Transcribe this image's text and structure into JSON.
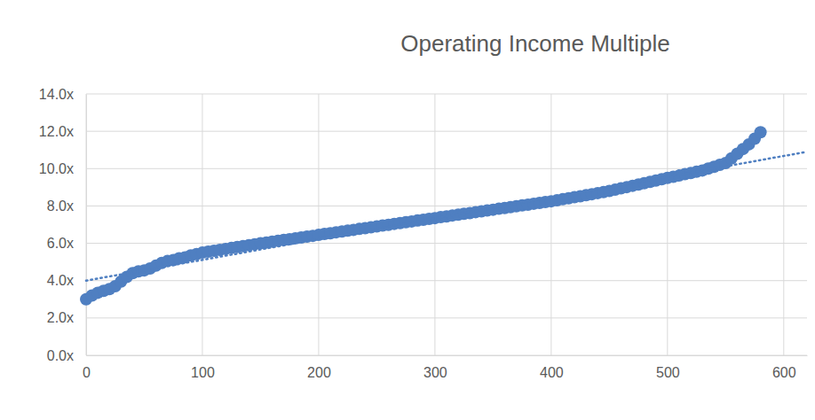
{
  "chart_data": {
    "type": "scatter",
    "title": "Operating Income Multiple",
    "grid": true,
    "xlim": [
      0,
      620
    ],
    "xticks": [
      0,
      100,
      200,
      300,
      400,
      500,
      600
    ],
    "ylim": [
      0,
      14
    ],
    "yticks": [
      {
        "value": 0,
        "label": "0.0x"
      },
      {
        "value": 2,
        "label": "2.0x"
      },
      {
        "value": 4,
        "label": "4.0x"
      },
      {
        "value": 6,
        "label": "6.0x"
      },
      {
        "value": 8,
        "label": "8.0x"
      },
      {
        "value": 10,
        "label": "10.0x"
      },
      {
        "value": 12,
        "label": "12.0x"
      },
      {
        "value": 14,
        "label": "14.0x"
      }
    ],
    "series": [
      {
        "type": "scatter",
        "marker": "circle",
        "color": "#4f7fc1",
        "x": [
          0,
          5,
          10,
          15,
          20,
          25,
          30,
          35,
          40,
          45,
          50,
          55,
          60,
          65,
          70,
          75,
          80,
          85,
          90,
          95,
          100,
          105,
          110,
          115,
          120,
          125,
          130,
          135,
          140,
          145,
          150,
          155,
          160,
          165,
          170,
          175,
          180,
          185,
          190,
          195,
          200,
          205,
          210,
          215,
          220,
          225,
          230,
          235,
          240,
          245,
          250,
          255,
          260,
          265,
          270,
          275,
          280,
          285,
          290,
          295,
          300,
          305,
          310,
          315,
          320,
          325,
          330,
          335,
          340,
          345,
          350,
          355,
          360,
          365,
          370,
          375,
          380,
          385,
          390,
          395,
          400,
          405,
          410,
          415,
          420,
          425,
          430,
          435,
          440,
          445,
          450,
          455,
          460,
          465,
          470,
          475,
          480,
          485,
          490,
          495,
          500,
          505,
          510,
          515,
          520,
          525,
          530,
          535,
          540,
          545,
          550,
          555,
          560,
          565,
          570,
          575,
          580
        ],
        "values": [
          3.0,
          3.2,
          3.35,
          3.45,
          3.55,
          3.7,
          3.95,
          4.2,
          4.4,
          4.5,
          4.55,
          4.65,
          4.8,
          4.95,
          5.05,
          5.1,
          5.2,
          5.25,
          5.35,
          5.42,
          5.5,
          5.55,
          5.6,
          5.65,
          5.7,
          5.75,
          5.8,
          5.85,
          5.9,
          5.95,
          6.0,
          6.04,
          6.09,
          6.13,
          6.18,
          6.22,
          6.27,
          6.31,
          6.36,
          6.4,
          6.45,
          6.5,
          6.54,
          6.59,
          6.63,
          6.68,
          6.72,
          6.77,
          6.81,
          6.86,
          6.9,
          6.95,
          6.99,
          7.04,
          7.08,
          7.13,
          7.17,
          7.22,
          7.26,
          7.31,
          7.35,
          7.4,
          7.44,
          7.49,
          7.53,
          7.58,
          7.62,
          7.67,
          7.71,
          7.76,
          7.8,
          7.85,
          7.89,
          7.94,
          7.98,
          8.03,
          8.07,
          8.12,
          8.16,
          8.21,
          8.25,
          8.3,
          8.36,
          8.41,
          8.47,
          8.52,
          8.58,
          8.63,
          8.69,
          8.74,
          8.8,
          8.87,
          8.94,
          9.01,
          9.08,
          9.15,
          9.22,
          9.29,
          9.36,
          9.43,
          9.5,
          9.56,
          9.63,
          9.7,
          9.76,
          9.83,
          9.9,
          10.0,
          10.1,
          10.2,
          10.3,
          10.55,
          10.8,
          11.05,
          11.3,
          11.6,
          11.95
        ]
      },
      {
        "type": "line",
        "line_style": "dotted",
        "color": "#4f7fc1",
        "x": [
          0,
          620
        ],
        "values": [
          4.0,
          10.9
        ]
      }
    ]
  }
}
